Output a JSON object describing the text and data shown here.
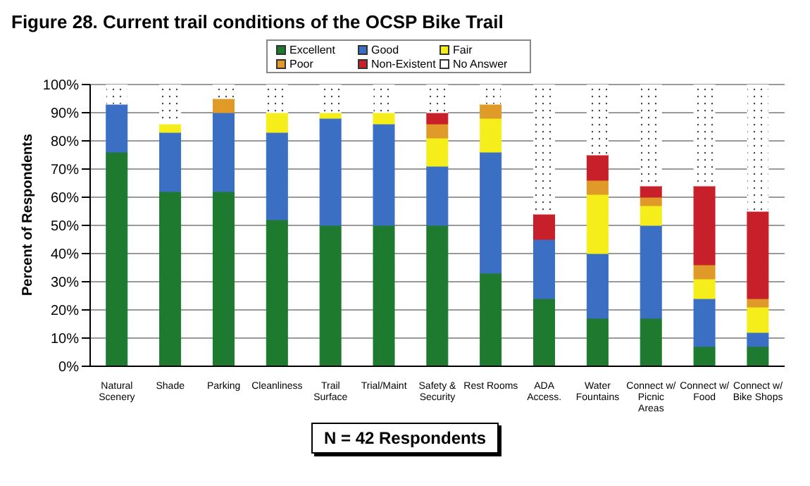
{
  "chart_data": {
    "type": "bar",
    "title": "Figure 28.  Current trail conditions of the OCSP Bike Trail",
    "ylabel": "Percent of Respondents",
    "stacked": true,
    "legend": "top",
    "grid": "y",
    "categories": [
      "Natural Scenery",
      "Shade",
      "Parking",
      "Cleanliness",
      "Trail Surface",
      "Trial/Maint",
      "Safety & Security",
      "Rest Rooms",
      "ADA Access.",
      "Water Fountains",
      "Connect w/ Picnic Areas",
      "Connect w/ Food",
      "Connect w/ Bike Shops"
    ],
    "series": [
      {
        "name": "Excellent",
        "color": "#1e7a2e",
        "values": [
          76,
          62,
          62,
          52,
          50,
          50,
          50,
          33,
          24,
          17,
          17,
          7,
          7
        ]
      },
      {
        "name": "Good",
        "color": "#3a6fc4",
        "values": [
          17,
          21,
          28,
          31,
          38,
          36,
          21,
          43,
          21,
          23,
          33,
          17,
          5
        ]
      },
      {
        "name": "Fair",
        "color": "#f5ee1a",
        "values": [
          0,
          3,
          0,
          7,
          2,
          4,
          10,
          12,
          0,
          21,
          7,
          7,
          9
        ]
      },
      {
        "name": "Poor",
        "color": "#e09a28",
        "values": [
          0,
          0,
          5,
          0,
          0,
          0,
          5,
          5,
          0,
          5,
          3,
          5,
          3
        ]
      },
      {
        "name": "Non-Existent",
        "color": "#c8202a",
        "values": [
          0,
          0,
          0,
          0,
          0,
          0,
          4,
          0,
          9,
          9,
          4,
          28,
          31
        ]
      },
      {
        "name": "No Answer",
        "color": "#ffffff",
        "values": [
          7,
          14,
          5,
          10,
          10,
          10,
          10,
          7,
          46,
          25,
          36,
          36,
          45
        ]
      }
    ],
    "ylim": [
      0,
      100
    ],
    "yticks": [
      {
        "value": 0,
        "label": "0%"
      },
      {
        "value": 10,
        "label": "10%"
      },
      {
        "value": 20,
        "label": "20%"
      },
      {
        "value": 30,
        "label": "30%"
      },
      {
        "value": 40,
        "label": "40%"
      },
      {
        "value": 50,
        "label": "50%"
      },
      {
        "value": 60,
        "label": "60%"
      },
      {
        "value": 70,
        "label": "70%"
      },
      {
        "value": 80,
        "label": "80%"
      },
      {
        "value": 90,
        "label": "90%"
      },
      {
        "value": 100,
        "label": "100%"
      }
    ],
    "annotations": [
      "N = 42 Respondents"
    ]
  }
}
